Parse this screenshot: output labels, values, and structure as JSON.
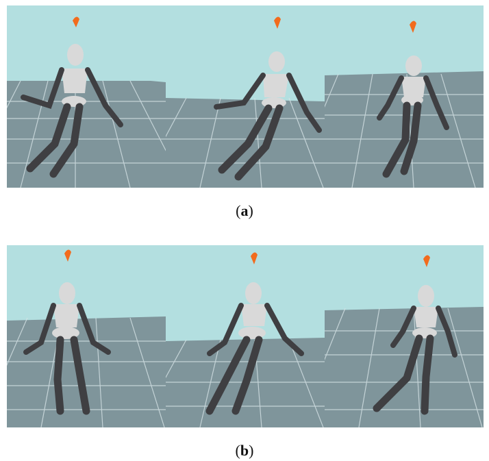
{
  "figure": {
    "panels": [
      {
        "id": "a",
        "caption_letter": "a",
        "frames": [
          {
            "pose": "left-stride",
            "wall": "high"
          },
          {
            "pose": "lean-right",
            "wall": "low"
          },
          {
            "pose": "right-stride",
            "wall": "mid"
          }
        ]
      },
      {
        "id": "b",
        "caption_letter": "b",
        "frames": [
          {
            "pose": "stand",
            "wall": "mid"
          },
          {
            "pose": "lean-right",
            "wall": "low"
          },
          {
            "pose": "right-stride",
            "wall": "high"
          }
        ]
      }
    ]
  },
  "colors": {
    "sky": "#b3dfe0",
    "floor": "#7f959b",
    "grid": "#d6e3e6",
    "marker": "#f26b1d",
    "limb": "#3f3f42",
    "body": "#d9d9d9"
  }
}
